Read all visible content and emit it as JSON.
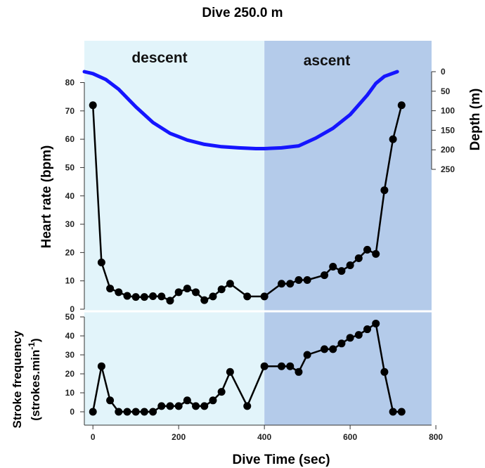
{
  "title": "Dive 250.0 m",
  "phases": {
    "descent": "descent",
    "ascent": "ascent"
  },
  "colors": {
    "descent_bg": "#e2f4fa",
    "ascent_bg": "#b4cbea",
    "depth_line": "#1515ff",
    "series_line": "#000000"
  },
  "chart_data": [
    {
      "type": "line",
      "panel": "top",
      "xlabel": "",
      "ylabel": "Heart rate (bpm)",
      "xlim": [
        -20,
        790
      ],
      "ylim": [
        0,
        85
      ],
      "yticks": [
        0,
        10,
        20,
        30,
        40,
        50,
        60,
        70,
        80
      ],
      "y2label": "Depth (m)",
      "y2lim": [
        0,
        250
      ],
      "y2ticks": [
        0,
        50,
        100,
        150,
        200,
        250
      ],
      "series": [
        {
          "name": "",
          "axis": "left",
          "x": [
            0,
            20,
            40,
            60,
            80,
            100,
            120,
            140,
            160,
            180,
            200,
            220,
            240,
            260,
            280,
            300,
            320,
            360,
            400,
            440,
            460,
            480,
            500,
            540,
            560,
            580,
            600,
            620,
            640,
            660,
            680,
            700,
            720
          ],
          "y": [
            72,
            16.5,
            7.3,
            6,
            4.7,
            4.3,
            4.3,
            4.6,
            4.5,
            3,
            6,
            7.3,
            6,
            3.2,
            4.5,
            7,
            9,
            4.5,
            4.5,
            9,
            9,
            10.3,
            10.3,
            12,
            15,
            13.5,
            15.5,
            18,
            21,
            19.5,
            42,
            60,
            72
          ]
        },
        {
          "name": "",
          "axis": "right",
          "x": [
            -20,
            0,
            30,
            60,
            100,
            140,
            180,
            220,
            260,
            300,
            340,
            380,
            400,
            440,
            480,
            520,
            560,
            600,
            640,
            660,
            680,
            710
          ],
          "y": [
            0,
            5,
            20,
            45,
            90,
            130,
            158,
            175,
            186,
            192,
            195,
            197,
            197,
            195,
            190,
            170,
            145,
            110,
            60,
            30,
            12,
            0
          ]
        }
      ]
    },
    {
      "type": "line",
      "panel": "bottom",
      "xlabel": "Dive Time (sec)",
      "ylabel": "Stroke frequency (strokes.min-1)",
      "ylabel_line1": "Stroke frequency",
      "ylabel_line2": "(strokes.min",
      "ylabel_sup": "-1",
      "ylabel_close": ")",
      "xlim": [
        -20,
        790
      ],
      "ylim": [
        -5,
        50
      ],
      "xticks": [
        0,
        200,
        400,
        600,
        800
      ],
      "yticks": [
        0,
        10,
        20,
        30,
        40,
        50
      ],
      "series": [
        {
          "name": "",
          "x": [
            0,
            20,
            40,
            60,
            80,
            100,
            120,
            140,
            160,
            180,
            200,
            220,
            240,
            260,
            280,
            300,
            320,
            360,
            400,
            440,
            460,
            480,
            500,
            540,
            560,
            580,
            600,
            620,
            640,
            660,
            680,
            700,
            720
          ],
          "y": [
            0,
            24,
            6,
            0,
            0,
            0,
            0,
            0,
            3,
            3,
            3,
            6,
            3,
            3,
            6,
            10.5,
            21,
            3,
            24,
            24,
            24,
            21,
            30,
            33,
            33,
            36,
            39,
            40.5,
            43.5,
            46.5,
            21,
            0,
            0
          ]
        }
      ]
    }
  ]
}
